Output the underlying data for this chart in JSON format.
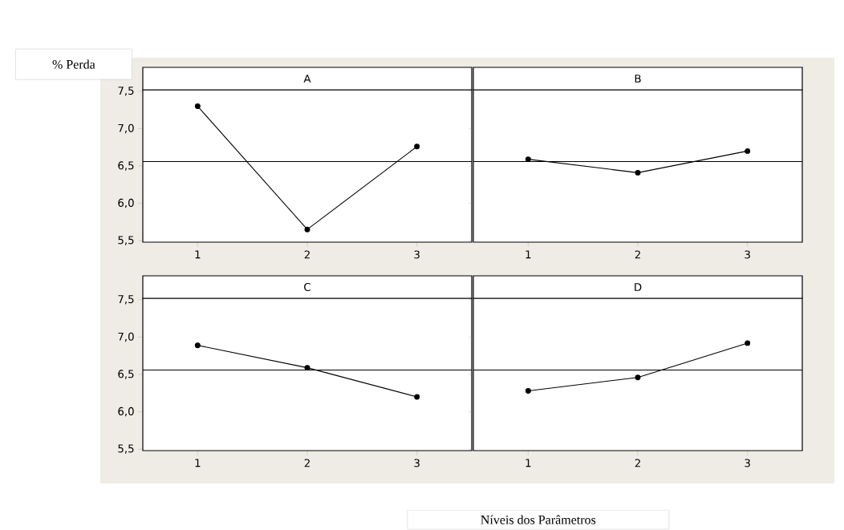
{
  "chart_data": [
    {
      "type": "line",
      "title": "A",
      "ylabel": "% Perda",
      "categories": [
        "1",
        "2",
        "3"
      ],
      "values": [
        7.3,
        5.65,
        6.76
      ],
      "color": "#000000",
      "marker": "circle",
      "line_style": "solid",
      "ylim": [
        5.48,
        7.52
      ],
      "yticks": [
        {
          "value": 5.5,
          "label": "5,5"
        },
        {
          "value": 6.0,
          "label": "6,0"
        },
        {
          "value": 6.5,
          "label": "6,5"
        },
        {
          "value": 7.0,
          "label": "7,0"
        },
        {
          "value": 7.5,
          "label": "7,5"
        }
      ],
      "ref_lines": [
        {
          "axis": "y",
          "value": 6.56,
          "color": "#000000"
        }
      ]
    },
    {
      "type": "line",
      "title": "B",
      "categories": [
        "1",
        "2",
        "3"
      ],
      "values": [
        6.59,
        6.41,
        6.7
      ],
      "color": "#000000",
      "marker": "circle",
      "line_style": "solid",
      "ylim": [
        5.48,
        7.52
      ],
      "yticks": [
        {
          "value": 5.5,
          "label": null
        },
        {
          "value": 6.0,
          "label": null
        },
        {
          "value": 6.5,
          "label": null
        },
        {
          "value": 7.0,
          "label": null
        },
        {
          "value": 7.5,
          "label": null
        }
      ],
      "ref_lines": [
        {
          "axis": "y",
          "value": 6.56,
          "color": "#000000"
        }
      ],
      "tick_labels": "x"
    },
    {
      "type": "line",
      "title": "C",
      "xlabel": "Níveis dos Parâmetros",
      "categories": [
        "1",
        "2",
        "3"
      ],
      "values": [
        6.89,
        6.59,
        6.2
      ],
      "color": "#000000",
      "marker": "circle",
      "line_style": "solid",
      "ylim": [
        5.48,
        7.52
      ],
      "yticks": [
        {
          "value": 5.5,
          "label": "5,5"
        },
        {
          "value": 6.0,
          "label": "6,0"
        },
        {
          "value": 6.5,
          "label": "6,5"
        },
        {
          "value": 7.0,
          "label": "7,0"
        },
        {
          "value": 7.5,
          "label": "7,5"
        }
      ],
      "ref_lines": [
        {
          "axis": "y",
          "value": 6.56,
          "color": "#000000"
        }
      ]
    },
    {
      "type": "line",
      "title": "D",
      "categories": [
        "1",
        "2",
        "3"
      ],
      "values": [
        6.28,
        6.46,
        6.92
      ],
      "color": "#000000",
      "marker": "circle",
      "line_style": "solid",
      "ylim": [
        5.48,
        7.52
      ],
      "yticks": [
        {
          "value": 5.5,
          "label": null
        },
        {
          "value": 6.0,
          "label": null
        },
        {
          "value": 6.5,
          "label": null
        },
        {
          "value": 7.0,
          "label": null
        },
        {
          "value": 7.5,
          "label": null
        }
      ],
      "ref_lines": [
        {
          "axis": "y",
          "value": 6.56,
          "color": "#000000"
        }
      ],
      "tick_labels": "x"
    }
  ]
}
